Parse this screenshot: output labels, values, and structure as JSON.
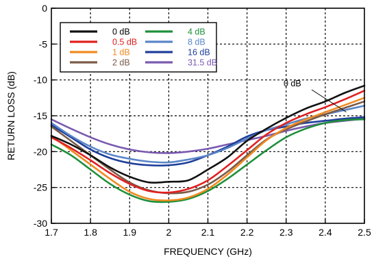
{
  "chart_data": {
    "type": "line",
    "xlabel": "FREQUENCY (GHz)",
    "ylabel": "RETURN LOSS (dB)",
    "xlim": [
      1.7,
      2.5
    ],
    "ylim": [
      -30,
      0
    ],
    "x_ticks": [
      1.7,
      1.8,
      1.9,
      2.0,
      2.1,
      2.2,
      2.3,
      2.4,
      2.5
    ],
    "x_tick_labels": [
      "1.7",
      "1.8",
      "1.9",
      "2",
      "2.1",
      "2.2",
      "2.3",
      "2.4",
      "2.5"
    ],
    "y_ticks": [
      0,
      -5,
      -10,
      -15,
      -20,
      -25,
      -30
    ],
    "y_tick_labels": [
      "0",
      "-5",
      "-10",
      "-15",
      "-20",
      "-25",
      "-30"
    ],
    "grid": true,
    "grid_style": "dashed",
    "legend_position": "top-left",
    "annotation": {
      "text": "0 dB",
      "x": 2.45,
      "y": -11.8,
      "points_to_series": "0 dB"
    },
    "series": [
      {
        "name": "0 dB",
        "color": "#111111",
        "x": [
          1.7,
          1.75,
          1.8,
          1.85,
          1.9,
          1.95,
          2.0,
          2.05,
          2.1,
          2.15,
          2.2,
          2.25,
          2.3,
          2.35,
          2.4,
          2.45,
          2.5
        ],
        "y": [
          -17.8,
          -19.0,
          -20.5,
          -22.2,
          -23.5,
          -24.3,
          -24.2,
          -24.0,
          -22.5,
          -20.8,
          -18.5,
          -16.8,
          -15.3,
          -14.0,
          -13.0,
          -11.8,
          -10.8
        ]
      },
      {
        "name": "0.5 dB",
        "color": "#e02020",
        "x": [
          1.7,
          1.75,
          1.8,
          1.85,
          1.9,
          1.95,
          2.0,
          2.05,
          2.1,
          2.15,
          2.2,
          2.25,
          2.3,
          2.35,
          2.4,
          2.45,
          2.5
        ],
        "y": [
          -18.0,
          -19.5,
          -21.2,
          -23.0,
          -24.5,
          -25.5,
          -25.7,
          -25.2,
          -24.0,
          -22.0,
          -19.8,
          -17.6,
          -16.0,
          -14.8,
          -13.8,
          -12.7,
          -11.5
        ]
      },
      {
        "name": "1 dB",
        "color": "#f08a20",
        "x": [
          1.7,
          1.75,
          1.8,
          1.85,
          1.9,
          1.95,
          2.0,
          2.05,
          2.1,
          2.15,
          2.2,
          2.25,
          2.3,
          2.35,
          2.4,
          2.45,
          2.5
        ],
        "y": [
          -17.8,
          -19.8,
          -21.8,
          -23.8,
          -25.6,
          -26.6,
          -26.8,
          -26.4,
          -25.2,
          -23.2,
          -20.8,
          -18.4,
          -16.7,
          -15.5,
          -14.5,
          -13.5,
          -12.5
        ]
      },
      {
        "name": "2 dB",
        "color": "#7a5a48",
        "x": [
          1.7,
          1.75,
          1.8,
          1.85,
          1.9,
          1.95,
          2.0,
          2.05,
          2.1,
          2.15,
          2.2,
          2.25,
          2.3,
          2.35,
          2.4,
          2.45,
          2.5
        ],
        "y": [
          -16.5,
          -18.5,
          -20.5,
          -22.5,
          -24.3,
          -25.4,
          -25.8,
          -25.6,
          -24.6,
          -22.8,
          -20.5,
          -18.3,
          -16.9,
          -15.8,
          -14.8,
          -13.9,
          -13.0
        ]
      },
      {
        "name": "4 dB",
        "color": "#1f8f3a",
        "x": [
          1.7,
          1.75,
          1.8,
          1.85,
          1.9,
          1.95,
          2.0,
          2.05,
          2.1,
          2.15,
          2.2,
          2.25,
          2.3,
          2.35,
          2.4,
          2.45,
          2.5
        ],
        "y": [
          -19.0,
          -20.5,
          -22.5,
          -24.5,
          -26.0,
          -26.9,
          -27.0,
          -26.6,
          -25.5,
          -23.8,
          -21.8,
          -19.8,
          -18.0,
          -16.8,
          -16.0,
          -15.6,
          -15.5
        ]
      },
      {
        "name": "8 dB",
        "color": "#5a86c8",
        "x": [
          1.7,
          1.75,
          1.8,
          1.85,
          1.9,
          1.95,
          2.0,
          2.05,
          2.1,
          2.15,
          2.2,
          2.25,
          2.3,
          2.35,
          2.4,
          2.45,
          2.5
        ],
        "y": [
          -16.0,
          -17.8,
          -19.3,
          -20.4,
          -21.0,
          -21.4,
          -21.5,
          -21.1,
          -20.5,
          -19.5,
          -18.2,
          -17.0,
          -16.2,
          -15.4,
          -14.8,
          -14.2,
          -13.6
        ]
      },
      {
        "name": "16 dB",
        "color": "#1f3f9a",
        "x": [
          1.7,
          1.75,
          1.8,
          1.85,
          1.9,
          1.95,
          2.0,
          2.05,
          2.1,
          2.15,
          2.2,
          2.25,
          2.3,
          2.35,
          2.4,
          2.45,
          2.5
        ],
        "y": [
          -16.3,
          -18.0,
          -19.7,
          -20.9,
          -21.6,
          -21.9,
          -21.9,
          -21.5,
          -20.5,
          -19.3,
          -17.9,
          -17.0,
          -16.5,
          -16.0,
          -15.7,
          -15.4,
          -15.2
        ]
      },
      {
        "name": "31.5 dB",
        "color": "#7a5ab0",
        "x": [
          1.7,
          1.75,
          1.8,
          1.85,
          1.9,
          1.95,
          2.0,
          2.05,
          2.1,
          2.15,
          2.2,
          2.25,
          2.3,
          2.35,
          2.4,
          2.45,
          2.5
        ],
        "y": [
          -15.5,
          -16.8,
          -18.0,
          -19.0,
          -19.7,
          -20.1,
          -20.2,
          -20.0,
          -19.6,
          -19.0,
          -18.4,
          -17.8,
          -17.1,
          -16.5,
          -16.0,
          -15.7,
          -15.4
        ]
      }
    ]
  }
}
